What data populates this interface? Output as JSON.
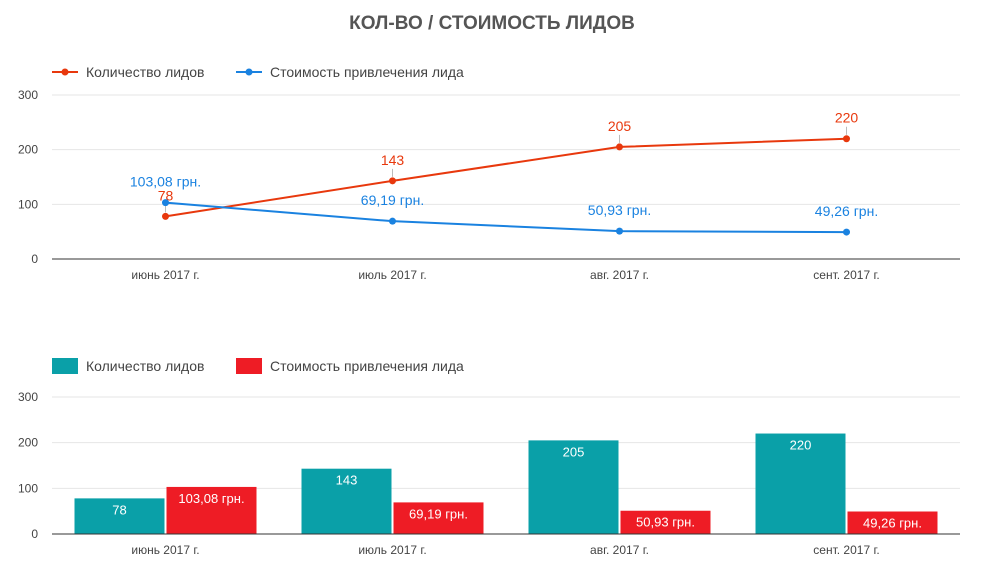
{
  "page": {
    "title": "КОЛ-ВО / СТОИМОСТЬ ЛИДОВ"
  },
  "colors": {
    "line_leads": "#e8380d",
    "line_cost": "#1a82e0",
    "bar_leads": "#0aa0a8",
    "bar_cost": "#ee1c25"
  },
  "chart_data": [
    {
      "type": "line",
      "title": "КОЛ-ВО / СТОИМОСТЬ ЛИДОВ",
      "categories": [
        "июнь 2017 г.",
        "июль 2017 г.",
        "авг. 2017 г.",
        "сент. 2017 г."
      ],
      "ylim": [
        0,
        300
      ],
      "yticks": [
        "0",
        "100",
        "200",
        "300"
      ],
      "grid": true,
      "legend": "top-left",
      "series": [
        {
          "name": "Количество лидов",
          "values": [
            78,
            143,
            205,
            220
          ],
          "labels": [
            "78",
            "143",
            "205",
            "220"
          ]
        },
        {
          "name": "Стоимость привлечения лида",
          "values": [
            103.08,
            69.19,
            50.93,
            49.26
          ],
          "labels": [
            "103,08 грн.",
            "69,19 грн.",
            "50,93 грн.",
            "49,26 грн."
          ]
        }
      ]
    },
    {
      "type": "bar",
      "categories": [
        "июнь 2017 г.",
        "июль 2017 г.",
        "авг. 2017 г.",
        "сент. 2017 г."
      ],
      "ylim": [
        0,
        300
      ],
      "yticks": [
        "0",
        "100",
        "200",
        "300"
      ],
      "grid": true,
      "legend": "top-left",
      "series": [
        {
          "name": "Количество лидов",
          "values": [
            78,
            143,
            205,
            220
          ],
          "labels": [
            "78",
            "143",
            "205",
            "220"
          ]
        },
        {
          "name": "Стоимость привлечения лида",
          "values": [
            103.08,
            69.19,
            50.93,
            49.26
          ],
          "labels": [
            "103,08 грн.",
            "69,19 грн.",
            "50,93 грн.",
            "49,26 грн."
          ]
        }
      ]
    }
  ]
}
